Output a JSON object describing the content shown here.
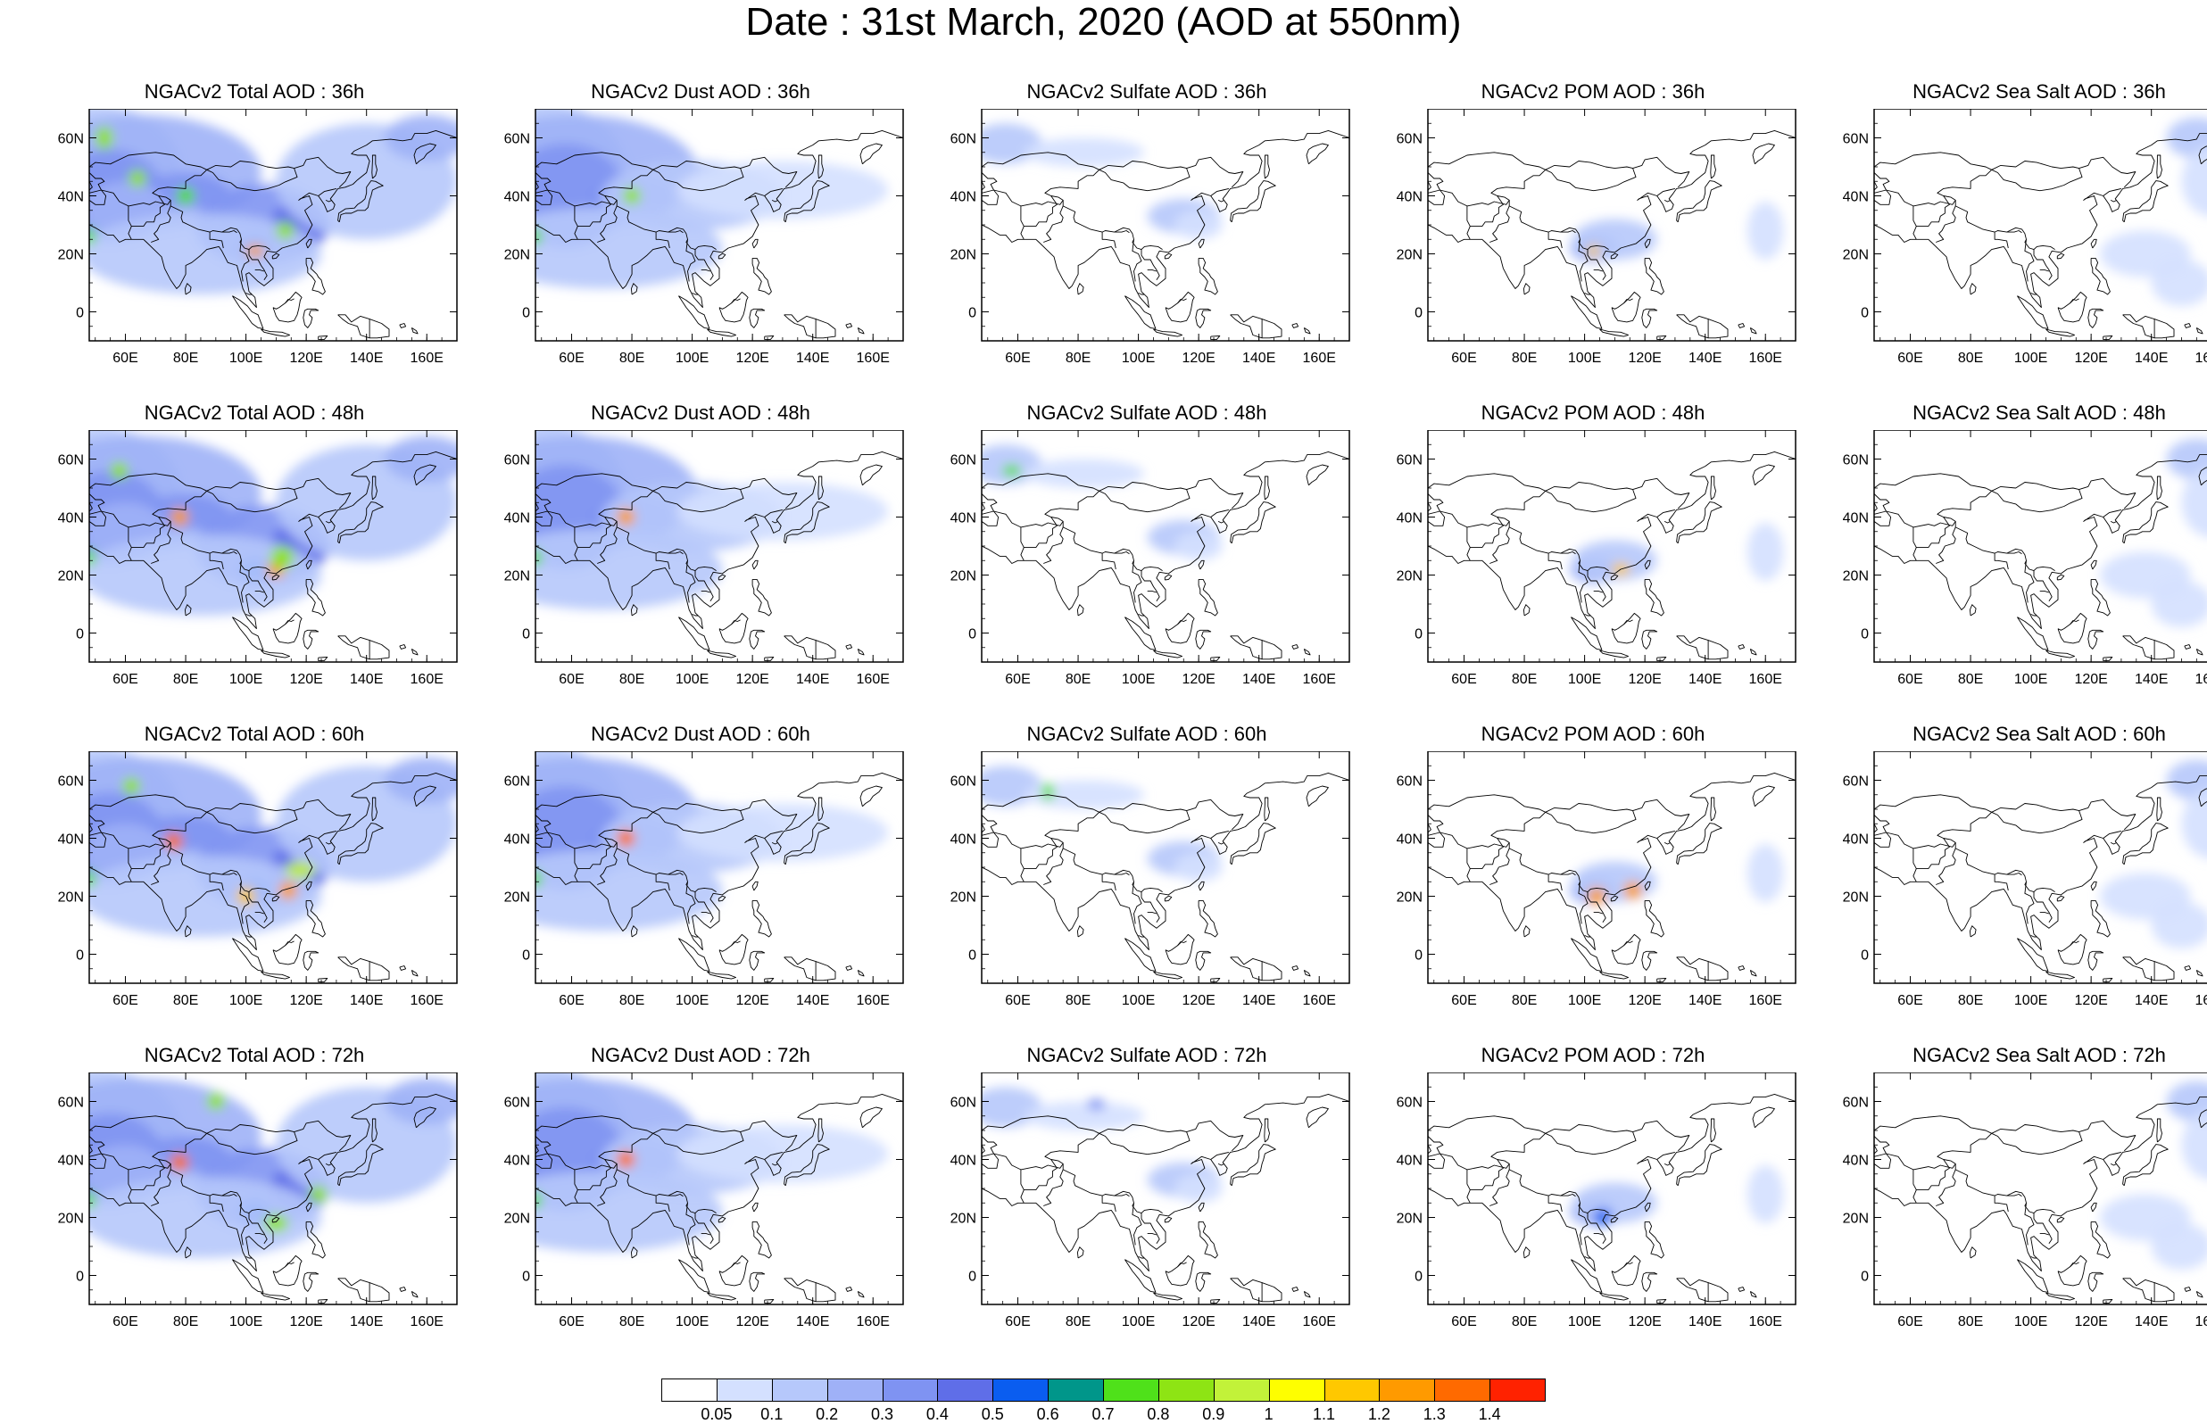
{
  "page_title": "Date : 31st March, 2020 (AOD at 550nm)",
  "colors": {
    "land_outline": "#000000",
    "scale": [
      "#ffffff",
      "#d4e0ff",
      "#b6c8fb",
      "#9fb1f7",
      "#7f93f2",
      "#5f6ee8",
      "#0a5df0",
      "#00968a",
      "#4fe11a",
      "#8ee414",
      "#c2f239",
      "#fefe00",
      "#ffc800",
      "#ff9a00",
      "#ff6a00",
      "#ff2200"
    ]
  },
  "lat_labels": [
    "60N",
    "40N",
    "20N",
    "0"
  ],
  "lon_labels": [
    "60E",
    "80E",
    "100E",
    "120E",
    "140E",
    "160E"
  ],
  "colorbar": {
    "labels": [
      "0.05",
      "0.1",
      "0.2",
      "0.3",
      "0.4",
      "0.5",
      "0.6",
      "0.7",
      "0.8",
      "0.9",
      "1",
      "1.1",
      "1.2",
      "1.3",
      "1.4"
    ]
  },
  "panels": [
    {
      "title": "NGACv2 Total AOD : 36h",
      "species": "total"
    },
    {
      "title": "NGACv2 Dust AOD : 36h",
      "species": "dust"
    },
    {
      "title": "NGACv2 Sulfate AOD : 36h",
      "species": "sulfate"
    },
    {
      "title": "NGACv2 POM AOD : 36h",
      "species": "pom"
    },
    {
      "title": "NGACv2 Sea Salt AOD : 36h",
      "species": "seasalt"
    },
    {
      "title": "NGACv2 Total AOD : 48h",
      "species": "total"
    },
    {
      "title": "NGACv2 Dust AOD : 48h",
      "species": "dust"
    },
    {
      "title": "NGACv2 Sulfate AOD : 48h",
      "species": "sulfate"
    },
    {
      "title": "NGACv2 POM AOD : 48h",
      "species": "pom"
    },
    {
      "title": "NGACv2 Sea Salt AOD : 48h",
      "species": "seasalt"
    },
    {
      "title": "NGACv2 Total AOD : 60h",
      "species": "total"
    },
    {
      "title": "NGACv2 Dust AOD : 60h",
      "species": "dust"
    },
    {
      "title": "NGACv2 Sulfate AOD : 60h",
      "species": "sulfate"
    },
    {
      "title": "NGACv2 POM AOD : 60h",
      "species": "pom"
    },
    {
      "title": "NGACv2 Sea Salt AOD : 60h",
      "species": "seasalt"
    },
    {
      "title": "NGACv2 Total AOD : 72h",
      "species": "total"
    },
    {
      "title": "NGACv2 Dust AOD : 72h",
      "species": "dust"
    },
    {
      "title": "NGACv2 Sulfate AOD : 72h",
      "species": "sulfate"
    },
    {
      "title": "NGACv2 POM AOD : 72h",
      "species": "pom"
    },
    {
      "title": "NGACv2 Sea Salt  AOD : 72h",
      "species": "seasalt"
    }
  ]
}
